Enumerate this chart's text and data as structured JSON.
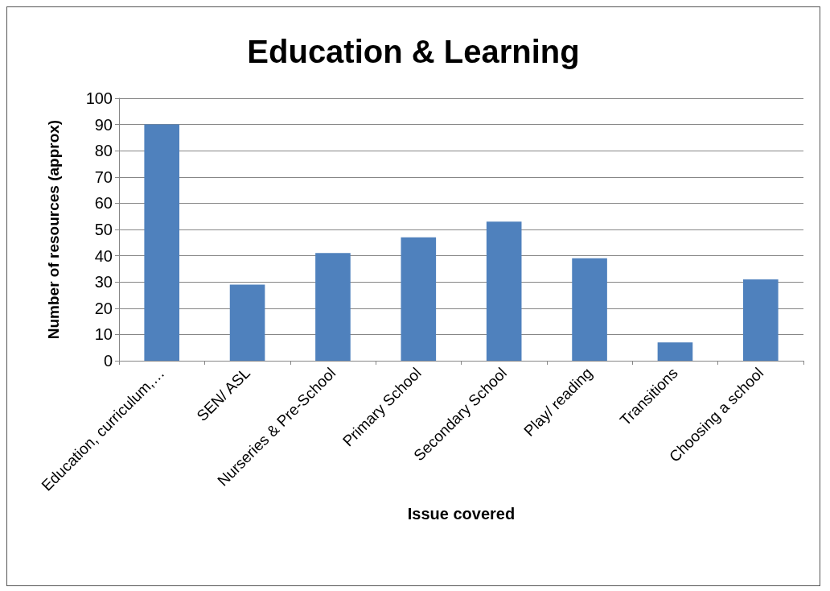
{
  "chart_data": {
    "type": "bar",
    "title": "Education & Learning",
    "xlabel": "Issue covered",
    "ylabel": "Number of resources (approx)",
    "categories": [
      "Education, curriculum,…",
      "SEN/ ASL",
      "Nurseries & Pre-School",
      "Primary School",
      "Secondary School",
      "Play/ reading",
      "Transitions",
      "Choosing a school"
    ],
    "values": [
      90,
      29,
      41,
      47,
      53,
      39,
      7,
      31
    ],
    "color": "#4f81bd",
    "ylim": [
      0,
      100
    ],
    "yticks": [
      0,
      10,
      20,
      30,
      40,
      50,
      60,
      70,
      80,
      90,
      100
    ],
    "grid": "y"
  }
}
